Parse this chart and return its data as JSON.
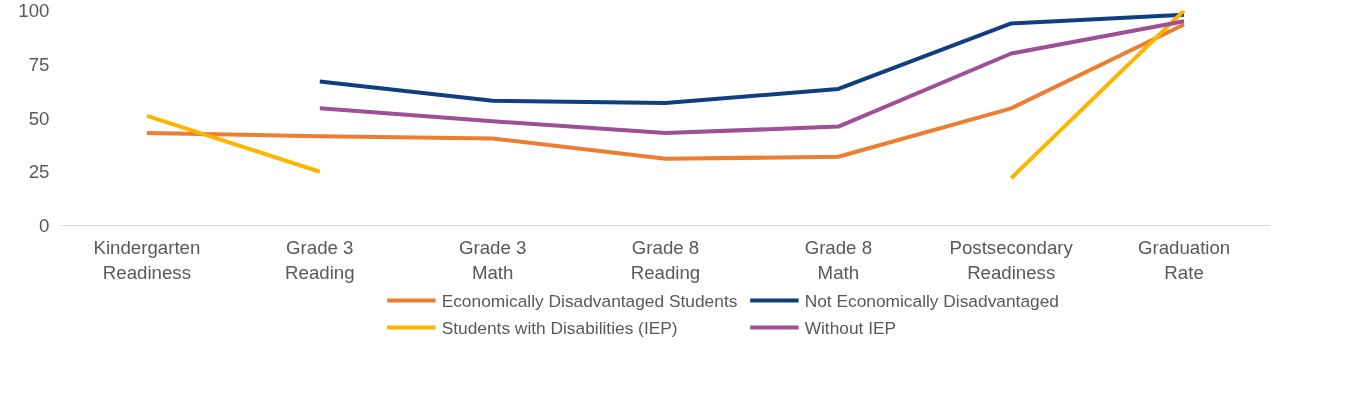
{
  "chart_data": {
    "type": "line",
    "categories": [
      "Kindergarten Readiness",
      "Grade 3 Reading",
      "Grade 3 Math",
      "Grade 8 Reading",
      "Grade 8 Math",
      "Postsecondary Readiness",
      "Graduation Rate"
    ],
    "series": [
      {
        "name": "Economically Disadvantaged Students",
        "color": "#ed7d31",
        "values": [
          43,
          41.5,
          40.5,
          31,
          32,
          54.5,
          93.5
        ]
      },
      {
        "name": "Not Economically Disadvantaged",
        "color": "#0f3f7f",
        "values": [
          null,
          67,
          58,
          57,
          63.5,
          94,
          98
        ]
      },
      {
        "name": "Students with Disabilities (IEP)",
        "color": "#ffb400",
        "values": [
          51,
          25,
          null,
          null,
          null,
          22,
          100
        ]
      },
      {
        "name": "Without IEP",
        "color": "#9e4f96",
        "values": [
          null,
          54.5,
          48.5,
          43,
          46,
          80,
          95
        ]
      }
    ],
    "ylim": [
      0,
      100
    ],
    "yticks": [
      0,
      25,
      50,
      75,
      100
    ],
    "grid": false,
    "legend": "bottom",
    "marker": "none",
    "line_style": "solid"
  }
}
